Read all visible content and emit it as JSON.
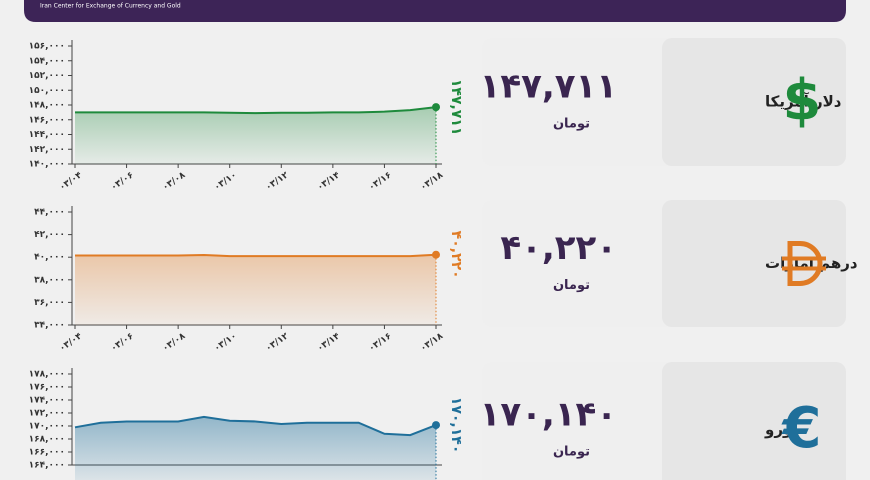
{
  "header": {
    "subtitle": "Iran Center for Exchange of Currency and Gold"
  },
  "cards": [
    {
      "currency": "دلار آمریکا",
      "symbol": "$",
      "price": "۱۴۷,۷۱۱",
      "unit": "تومان",
      "color": "#1e8a3c"
    },
    {
      "currency": "درهم امارات",
      "price": "۴۰,۲۲۰",
      "unit": "تومان",
      "color": "#e07b24"
    },
    {
      "currency": "یورو",
      "symbol": "€",
      "price": "۱۷۰,۱۴۰",
      "unit": "تومان",
      "color": "#1f6f9a"
    }
  ],
  "chart_data": [
    {
      "type": "line",
      "categories": [
        "۰۳/۰۴",
        null,
        "۰۳/۰۶",
        null,
        "۰۳/۰۸",
        null,
        "۰۳/۱۰",
        null,
        "۰۳/۱۲",
        null,
        "۰۳/۱۴",
        null,
        "۰۳/۱۶",
        null,
        "۰۳/۱۸"
      ],
      "series": [
        {
          "color": "#1e8a3c",
          "values": [
            147000,
            147000,
            147000,
            147000,
            147000,
            147000,
            146950,
            146900,
            146950,
            146950,
            147000,
            147000,
            147100,
            147300,
            147711
          ],
          "value_labels": [
            null,
            null,
            null,
            null,
            null,
            null,
            null,
            null,
            null,
            null,
            null,
            null,
            null,
            null,
            "۱۴۷,۷۱۱"
          ]
        }
      ],
      "ylim": [
        140000,
        156000
      ],
      "yticks": [
        {
          "value": 140000,
          "label": "۱۴۰,۰۰۰"
        },
        {
          "value": 142000,
          "label": "۱۴۲,۰۰۰"
        },
        {
          "value": 144000,
          "label": "۱۴۴,۰۰۰"
        },
        {
          "value": 146000,
          "label": "۱۴۶,۰۰۰"
        },
        {
          "value": 148000,
          "label": "۱۴۸,۰۰۰"
        },
        {
          "value": 150000,
          "label": "۱۵۰,۰۰۰"
        },
        {
          "value": 152000,
          "label": "۱۵۲,۰۰۰"
        },
        {
          "value": 154000,
          "label": "۱۵۴,۰۰۰"
        },
        {
          "value": 156000,
          "label": "۱۵۶,۰۰۰"
        }
      ]
    },
    {
      "type": "line",
      "categories": [
        "۰۳/۰۴",
        null,
        "۰۳/۰۶",
        null,
        "۰۳/۰۸",
        null,
        "۰۳/۱۰",
        null,
        "۰۳/۱۲",
        null,
        "۰۳/۱۴",
        null,
        "۰۳/۱۶",
        null,
        "۰۳/۱۸"
      ],
      "series": [
        {
          "color": "#e07b24",
          "values": [
            40150,
            40150,
            40150,
            40150,
            40150,
            40200,
            40100,
            40100,
            40100,
            40100,
            40100,
            40100,
            40100,
            40100,
            40220
          ],
          "value_labels": [
            null,
            null,
            null,
            null,
            null,
            null,
            null,
            null,
            null,
            null,
            null,
            null,
            null,
            null,
            "۴۰,۲۲۰"
          ]
        }
      ],
      "ylim": [
        34000,
        44000
      ],
      "yticks": [
        {
          "value": 34000,
          "label": "۳۴,۰۰۰"
        },
        {
          "value": 36000,
          "label": "۳۶,۰۰۰"
        },
        {
          "value": 38000,
          "label": "۳۸,۰۰۰"
        },
        {
          "value": 40000,
          "label": "۴۰,۰۰۰"
        },
        {
          "value": 42000,
          "label": "۴۲,۰۰۰"
        },
        {
          "value": 44000,
          "label": "۴۴,۰۰۰"
        }
      ]
    },
    {
      "type": "line",
      "categories": [
        null,
        null,
        null,
        null,
        null,
        null,
        null,
        null,
        null,
        null,
        null,
        null,
        null,
        null,
        null
      ],
      "series": [
        {
          "color": "#1f6f9a",
          "values": [
            169800,
            170500,
            170700,
            170700,
            170700,
            171400,
            170800,
            170700,
            170300,
            170500,
            170500,
            170500,
            168800,
            168600,
            170140
          ],
          "value_labels": [
            null,
            null,
            null,
            null,
            null,
            null,
            null,
            null,
            null,
            null,
            null,
            null,
            null,
            null,
            "۱۷۰,۱۴۰"
          ]
        }
      ],
      "ylim": [
        164000,
        178000
      ],
      "yticks": [
        {
          "value": 164000,
          "label": "۱۶۴,۰۰۰"
        },
        {
          "value": 166000,
          "label": "۱۶۶,۰۰۰"
        },
        {
          "value": 168000,
          "label": "۱۶۸,۰۰۰"
        },
        {
          "value": 170000,
          "label": "۱۷۰,۰۰۰"
        },
        {
          "value": 172000,
          "label": "۱۷۲,۰۰۰"
        },
        {
          "value": 174000,
          "label": "۱۷۴,۰۰۰"
        },
        {
          "value": 176000,
          "label": "۱۷۶,۰۰۰"
        },
        {
          "value": 178000,
          "label": "۱۷۸,۰۰۰"
        }
      ]
    }
  ]
}
